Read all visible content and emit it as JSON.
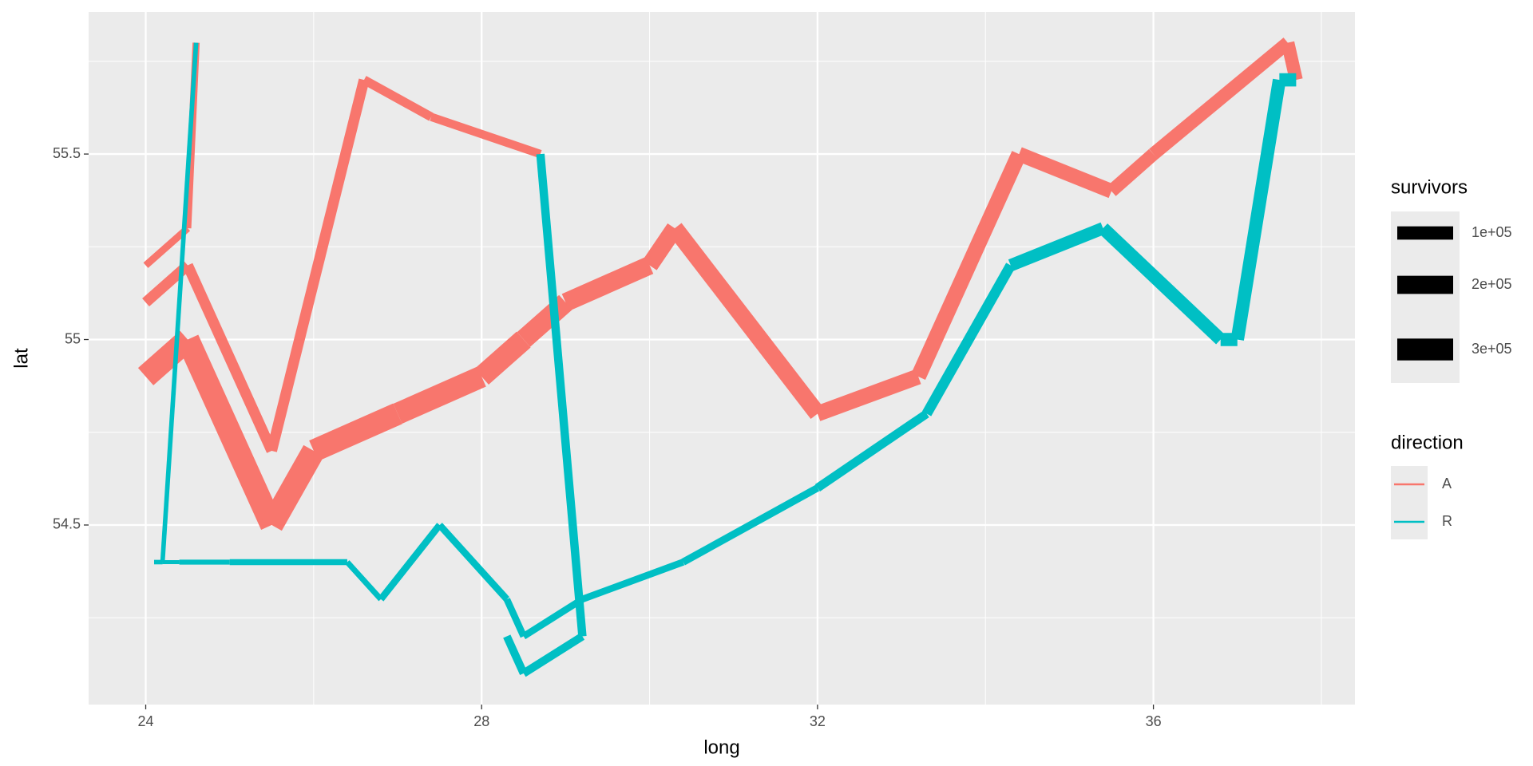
{
  "chart_data": {
    "type": "path",
    "x_label": "long",
    "y_label": "lat",
    "xlim": [
      23.32,
      38.4
    ],
    "ylim": [
      54.016,
      55.883
    ],
    "xticks": [
      24,
      28,
      32,
      36
    ],
    "yticks": [
      54.5,
      55,
      55.5
    ],
    "x_minor_ticks": [
      26,
      30,
      34,
      38
    ],
    "y_minor_ticks": [
      54.25,
      54.75,
      55.25,
      55.75
    ],
    "grid": true,
    "size_legend": {
      "title": "survivors",
      "entries": [
        {
          "value": 100000,
          "label": "1e+05"
        },
        {
          "value": 200000,
          "label": "2e+05"
        },
        {
          "value": 300000,
          "label": "3e+05"
        }
      ]
    },
    "color_legend": {
      "title": "direction",
      "entries": [
        {
          "label": "A",
          "color": "#F8766D"
        },
        {
          "label": "R",
          "color": "#00BFC4"
        }
      ]
    },
    "paths": [
      {
        "long": [
          24.0,
          24.5,
          25.5,
          26.0,
          27.0,
          28.0,
          28.5,
          29.0,
          30.0,
          30.3,
          32.0,
          33.2,
          34.4,
          35.5,
          36.0,
          37.6,
          37.7,
          37.5,
          37.0,
          36.8,
          35.4,
          34.3,
          33.3,
          32.0,
          30.4,
          29.2,
          28.5,
          28.3,
          27.5,
          26.8,
          26.4,
          25.0,
          24.4,
          24.2,
          24.1
        ],
        "lat": [
          54.9,
          55.0,
          54.5,
          54.7,
          54.8,
          54.9,
          55.0,
          55.1,
          55.2,
          55.3,
          54.8,
          54.9,
          55.5,
          55.4,
          55.5,
          55.8,
          55.7,
          55.7,
          55.0,
          55.0,
          55.3,
          55.2,
          54.8,
          54.6,
          54.4,
          54.3,
          54.2,
          54.3,
          54.5,
          54.3,
          54.4,
          54.4,
          54.4,
          54.4,
          54.4
        ],
        "survivors": [
          340000,
          340000,
          340000,
          320000,
          300000,
          280000,
          240000,
          210000,
          180000,
          175000,
          145000,
          140000,
          127100,
          100000,
          100000,
          100000,
          100000,
          98000,
          97000,
          96000,
          87000,
          55000,
          37000,
          24000,
          20000,
          20000,
          20000,
          20000,
          20000,
          12000,
          14000,
          8000,
          4000,
          4000,
          4000
        ],
        "direction": [
          "A",
          "A",
          "A",
          "A",
          "A",
          "A",
          "A",
          "A",
          "A",
          "A",
          "A",
          "A",
          "A",
          "A",
          "A",
          "A",
          "R",
          "R",
          "R",
          "R",
          "R",
          "R",
          "R",
          "R",
          "R",
          "R",
          "R",
          "R",
          "R",
          "R",
          "R",
          "R",
          "R",
          "R",
          "R"
        ]
      },
      {
        "long": [
          24.0,
          24.5,
          25.5,
          26.6,
          27.4,
          28.7,
          29.2,
          28.5,
          28.3
        ],
        "lat": [
          55.1,
          55.2,
          54.7,
          55.7,
          55.6,
          55.5,
          54.2,
          54.1,
          54.2
        ],
        "survivors": [
          60000,
          60000,
          60000,
          40000,
          33000,
          33000,
          30000,
          30000,
          28000
        ],
        "direction": [
          "A",
          "A",
          "A",
          "A",
          "A",
          "R",
          "R",
          "R",
          "R"
        ]
      },
      {
        "long": [
          24.0,
          24.5,
          24.6,
          24.6,
          24.2,
          24.1
        ],
        "lat": [
          55.2,
          55.3,
          55.8,
          55.8,
          54.4,
          54.4
        ],
        "survivors": [
          22000,
          22000,
          6000,
          6000,
          6000,
          6000
        ],
        "direction": [
          "A",
          "A",
          "A",
          "R",
          "R",
          "R"
        ]
      }
    ]
  }
}
